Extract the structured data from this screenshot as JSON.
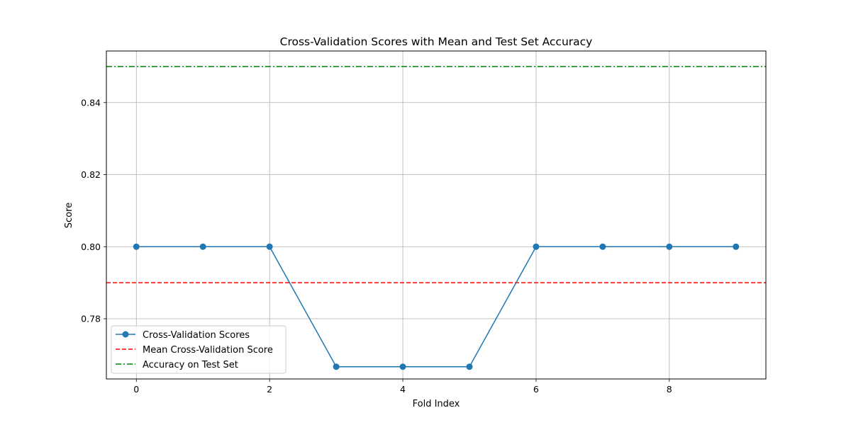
{
  "chart_data": {
    "type": "line",
    "title": "Cross-Validation Scores with Mean and Test Set Accuracy",
    "xlabel": "Fold Index",
    "ylabel": "Score",
    "x": [
      0,
      1,
      2,
      3,
      4,
      5,
      6,
      7,
      8,
      9
    ],
    "xlim": [
      -0.45,
      9.45
    ],
    "ylim": [
      0.7633,
      0.8543
    ],
    "xticks": [
      0,
      2,
      4,
      6,
      8
    ],
    "yticks": [
      0.78,
      0.8,
      0.82,
      0.84
    ],
    "xtick_labels": [
      "0",
      "2",
      "4",
      "6",
      "8"
    ],
    "ytick_labels": [
      "0.78",
      "0.80",
      "0.82",
      "0.84"
    ],
    "grid": true,
    "legend_position": "lower-left",
    "series": [
      {
        "name": "Cross-Validation Scores",
        "kind": "line-markers",
        "color": "#1f77b4",
        "values": [
          0.8,
          0.8,
          0.8,
          0.7667,
          0.7667,
          0.7667,
          0.8,
          0.8,
          0.8,
          0.8
        ]
      }
    ],
    "reference_lines": [
      {
        "name": "Mean Cross-Validation Score",
        "orientation": "horizontal",
        "y": 0.79,
        "style": "dashed",
        "color": "#ff0000"
      },
      {
        "name": "Accuracy on Test Set",
        "orientation": "horizontal",
        "y": 0.85,
        "style": "dash-dot",
        "color": "#008000"
      }
    ]
  }
}
